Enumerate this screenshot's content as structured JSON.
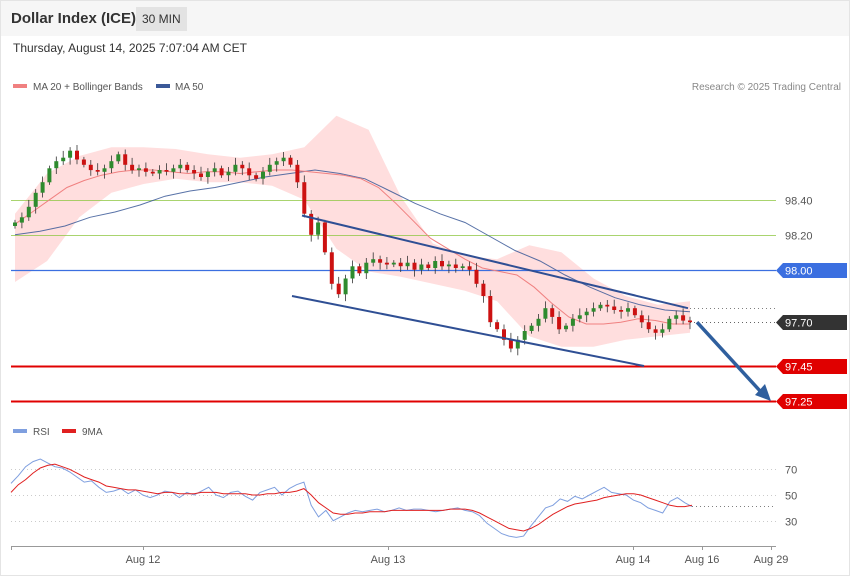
{
  "header": {
    "title": "Dollar Index (ICE)",
    "timeframe": "30 MIN",
    "timestamp": "Thursday, August 14, 2025 7:07:04 AM CET"
  },
  "legend": {
    "ma20_label": "MA 20 + Bollinger Bands",
    "ma50_label": "MA 50",
    "credit": "Research © 2025 Trading Central",
    "rsi_label": "RSI",
    "ma9_label": "9MA"
  },
  "colors": {
    "ma20": "#f08080",
    "bollinger_fill": "#ffd6d6",
    "ma50": "#3b5998",
    "pivot": "#3b6fe0",
    "support": "#e00000",
    "resistance_minor": "#8cc63f",
    "candle_up": "#2e8b2e",
    "candle_down": "#cc1111",
    "channel": "#2f4f94",
    "arrow": "#2f5f9e",
    "rsi": "#7f9fdf",
    "rsi_ma": "#e02020",
    "current_price_bg": "#333333"
  },
  "chart_data": [
    {
      "type": "candlestick",
      "title": "Dollar Index (ICE)",
      "timeframe": "30 MIN",
      "x_tick_labels": [
        "Aug 12",
        "Aug 13",
        "Aug 14",
        "Aug 16",
        "Aug 29"
      ],
      "y_tick_labels": [
        "98.40",
        "98.20"
      ],
      "ylim": [
        97.17,
        98.97
      ],
      "levels": [
        {
          "name": "resistance",
          "value": 98.4,
          "label": "98.40",
          "style": "minor"
        },
        {
          "name": "resistance",
          "value": 98.2,
          "label": "98.20",
          "style": "minor"
        },
        {
          "name": "pivot",
          "value": 98.0,
          "label": "98.00",
          "style": "pivot"
        },
        {
          "name": "last",
          "value": 97.7,
          "label": "97.70",
          "style": "last"
        },
        {
          "name": "support",
          "value": 97.45,
          "label": "97.45",
          "style": "support"
        },
        {
          "name": "support",
          "value": 97.25,
          "label": "97.25",
          "style": "support"
        }
      ],
      "close_series": [
        98.27,
        98.3,
        98.36,
        98.44,
        98.5,
        98.58,
        98.62,
        98.64,
        98.68,
        98.63,
        98.6,
        98.57,
        98.56,
        98.58,
        98.62,
        98.66,
        98.6,
        98.57,
        98.58,
        98.56,
        98.55,
        98.57,
        98.56,
        98.58,
        98.6,
        98.57,
        98.55,
        98.53,
        98.56,
        98.58,
        98.54,
        98.56,
        98.6,
        98.58,
        98.54,
        98.52,
        98.56,
        98.6,
        98.62,
        98.64,
        98.6,
        98.5,
        98.32,
        98.2,
        98.27,
        98.1,
        97.92,
        97.86,
        97.95,
        98.02,
        97.98,
        98.04,
        98.06,
        98.04,
        98.03,
        98.04,
        98.02,
        98.04,
        98.0,
        98.03,
        98.01,
        98.05,
        98.02,
        98.03,
        98.01,
        98.02,
        98.0,
        97.92,
        97.85,
        97.7,
        97.66,
        97.6,
        97.55,
        97.6,
        97.65,
        97.68,
        97.72,
        97.78,
        97.73,
        97.66,
        97.68,
        97.72,
        97.74,
        97.76,
        97.78,
        97.8,
        97.79,
        97.77,
        97.76,
        97.78,
        97.74,
        97.7,
        97.66,
        97.64,
        97.66,
        97.72,
        97.74,
        97.71,
        97.7
      ],
      "ma20_series": [
        98.26,
        98.33,
        98.4,
        98.47,
        98.51,
        98.54,
        98.56,
        98.57,
        98.57,
        98.56,
        98.55,
        98.56,
        98.56,
        98.55,
        98.56,
        98.57,
        98.57,
        98.56,
        98.55,
        98.54,
        98.52,
        98.47,
        98.38,
        98.28,
        98.18,
        98.12,
        98.06,
        98.01,
        97.99,
        97.97,
        97.9,
        97.81,
        97.73,
        97.69,
        97.69,
        97.7,
        97.72,
        97.71,
        97.69,
        97.69
      ],
      "ma50_series": [
        98.2,
        98.22,
        98.25,
        98.3,
        98.33,
        98.37,
        98.42,
        98.45,
        98.47,
        98.5,
        98.53,
        98.55,
        98.57,
        98.55,
        98.52,
        98.45,
        98.38,
        98.32,
        98.27,
        98.19,
        98.11,
        98.05,
        97.97,
        97.9,
        97.84,
        97.8,
        97.77,
        97.76
      ],
      "bb_upper_series": [
        98.32,
        98.55,
        98.65,
        98.7,
        98.7,
        98.69,
        98.66,
        98.64,
        98.66,
        98.7,
        98.88,
        98.8,
        98.42,
        98.15,
        98.08,
        98.06,
        98.14,
        98.1,
        97.95,
        97.85,
        97.8,
        97.82
      ],
      "bb_lower_series": [
        97.93,
        98.05,
        98.3,
        98.44,
        98.49,
        98.52,
        98.5,
        98.5,
        98.48,
        98.4,
        98.12,
        97.99,
        97.96,
        97.92,
        97.88,
        97.82,
        97.62,
        97.56,
        97.56,
        97.6,
        97.62,
        97.64
      ],
      "channel": {
        "upper_line": {
          "start": 98.31,
          "end": 97.78
        },
        "lower_line": {
          "start": 97.85,
          "end": 97.45
        }
      },
      "projection": {
        "from": 97.7,
        "to": 97.25
      }
    },
    {
      "type": "line",
      "title": "RSI",
      "y_tick_labels": [
        "70",
        "50",
        "30"
      ],
      "ylim": [
        15,
        85
      ],
      "series": [
        {
          "name": "RSI",
          "values": [
            59,
            65,
            72,
            76,
            78,
            75,
            72,
            71,
            68,
            64,
            60,
            61,
            56,
            52,
            53,
            55,
            51,
            54,
            50,
            48,
            50,
            53,
            52,
            48,
            52,
            50,
            53,
            56,
            50,
            48,
            52,
            53,
            49,
            46,
            52,
            54,
            56,
            50,
            55,
            58,
            60,
            42,
            33,
            38,
            30,
            33,
            36,
            38,
            37,
            38,
            39,
            37,
            38,
            40,
            38,
            39,
            39,
            38,
            37,
            38,
            39,
            40,
            38,
            37,
            34,
            28,
            24,
            20,
            18,
            17,
            18,
            26,
            33,
            40,
            42,
            47,
            45,
            49,
            47,
            50,
            53,
            56,
            52,
            51,
            50,
            46,
            44,
            40,
            38,
            36,
            45,
            48,
            44,
            41
          ]
        },
        {
          "name": "9MA",
          "values": [
            52,
            58,
            62,
            67,
            71,
            73,
            74,
            72,
            70,
            67,
            64,
            62,
            60,
            57,
            56,
            55,
            54,
            54,
            53,
            52,
            51,
            52,
            52,
            51,
            51,
            51,
            52,
            52,
            52,
            51,
            51,
            51,
            51,
            50,
            50,
            51,
            51,
            52,
            52,
            53,
            55,
            50,
            44,
            40,
            36,
            35,
            35,
            36,
            36,
            37,
            37,
            37,
            38,
            38,
            38,
            38,
            38,
            38,
            38,
            38,
            39,
            39,
            39,
            38,
            36,
            33,
            30,
            27,
            24,
            23,
            22,
            24,
            27,
            31,
            35,
            38,
            41,
            43,
            44,
            45,
            46,
            48,
            49,
            50,
            51,
            51,
            50,
            48,
            46,
            44,
            42,
            41,
            41,
            42
          ]
        }
      ]
    }
  ]
}
